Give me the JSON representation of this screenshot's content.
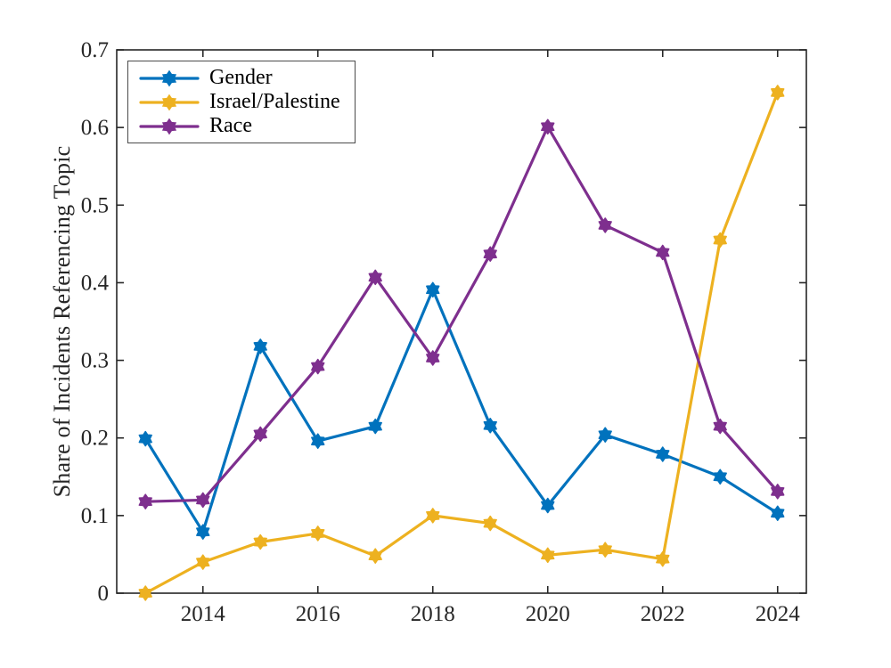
{
  "figure": {
    "background": "#ffffff",
    "axis_color": "#262626",
    "text_color": "#262626",
    "legend_border_color": "#4a4a4a"
  },
  "chart_data": {
    "type": "line",
    "title": "",
    "xlabel": "",
    "ylabel": "Share of Incidents Referencing Topic",
    "x": [
      2013,
      2014,
      2015,
      2016,
      2017,
      2018,
      2019,
      2020,
      2021,
      2022,
      2023,
      2024
    ],
    "series": [
      {
        "name": "Gender",
        "color": "#0072BD",
        "values": [
          0.199,
          0.079,
          0.318,
          0.196,
          0.215,
          0.391,
          0.216,
          0.113,
          0.204,
          0.179,
          0.15,
          0.103
        ]
      },
      {
        "name": "Israel/Palestine",
        "color": "#EDB120",
        "values": [
          0.0,
          0.04,
          0.066,
          0.077,
          0.048,
          0.1,
          0.09,
          0.049,
          0.056,
          0.044,
          0.455,
          0.645
        ]
      },
      {
        "name": "Race",
        "color": "#7E2F8E",
        "values": [
          0.118,
          0.12,
          0.205,
          0.292,
          0.407,
          0.303,
          0.437,
          0.601,
          0.474,
          0.439,
          0.215,
          0.131
        ]
      }
    ],
    "xlim": [
      2012.5,
      2024.5
    ],
    "ylim": [
      0,
      0.7
    ],
    "xticks": [
      2014,
      2016,
      2018,
      2020,
      2022,
      2024
    ],
    "xtick_labels": [
      "2014",
      "2016",
      "2018",
      "2020",
      "2022",
      "2024"
    ],
    "yticks": [
      0,
      0.1,
      0.2,
      0.3,
      0.4,
      0.5,
      0.6,
      0.7
    ],
    "ytick_labels": [
      "0",
      "0.1",
      "0.2",
      "0.3",
      "0.4",
      "0.5",
      "0.6",
      "0.7"
    ],
    "grid": false,
    "marker": "hexagram",
    "line_width": 3.2,
    "legend": {
      "position": "top-left",
      "entries": [
        "Gender",
        "Israel/Palestine",
        "Race"
      ]
    }
  }
}
